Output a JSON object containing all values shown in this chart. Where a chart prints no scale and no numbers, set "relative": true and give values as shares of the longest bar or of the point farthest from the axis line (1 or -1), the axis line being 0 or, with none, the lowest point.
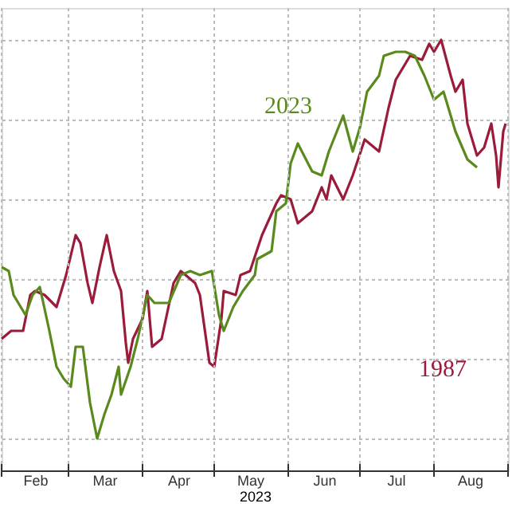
{
  "chart_data": {
    "type": "line",
    "relative": true,
    "xlabel": "2023",
    "grid": true,
    "legend": false,
    "line_style": "solid",
    "marker": "none",
    "xlim": [
      "2023-02-01",
      "2023-09-01"
    ],
    "xticks": [
      {
        "value": "2023-02-15",
        "label": "Feb"
      },
      {
        "value": "2023-03-16",
        "label": "Mar"
      },
      {
        "value": "2023-04-16",
        "label": "Apr"
      },
      {
        "value": "2023-05-16",
        "label": "May"
      },
      {
        "value": "2023-06-16",
        "label": "Jun"
      },
      {
        "value": "2023-07-16",
        "label": "Jul"
      },
      {
        "value": "2023-08-16",
        "label": "Aug"
      }
    ],
    "series": [
      {
        "name": "1987",
        "color": "#9b1b3a",
        "x": [
          "2023-02-01",
          "2023-02-05",
          "2023-02-10",
          "2023-02-13",
          "2023-02-15",
          "2023-02-19",
          "2023-02-24",
          "2023-02-28",
          "2023-03-04",
          "2023-03-06",
          "2023-03-09",
          "2023-03-11",
          "2023-03-14",
          "2023-03-17",
          "2023-03-20",
          "2023-03-23",
          "2023-03-25",
          "2023-03-26",
          "2023-03-28",
          "2023-04-01",
          "2023-04-03",
          "2023-04-05",
          "2023-04-09",
          "2023-04-14",
          "2023-04-17",
          "2023-04-23",
          "2023-04-25",
          "2023-04-29",
          "2023-05-01",
          "2023-05-04",
          "2023-05-05",
          "2023-05-10",
          "2023-05-12",
          "2023-05-16",
          "2023-05-21",
          "2023-05-27",
          "2023-05-29",
          "2023-06-02",
          "2023-06-05",
          "2023-06-11",
          "2023-06-15",
          "2023-06-17",
          "2023-06-19",
          "2023-06-24",
          "2023-06-28",
          "2023-07-03",
          "2023-07-09",
          "2023-07-13",
          "2023-07-16",
          "2023-07-22",
          "2023-07-27",
          "2023-07-30",
          "2023-08-01",
          "2023-08-04",
          "2023-08-08",
          "2023-08-10",
          "2023-08-13",
          "2023-08-15",
          "2023-08-19",
          "2023-08-22",
          "2023-08-25",
          "2023-08-27",
          "2023-08-28",
          "2023-08-30",
          "2023-08-31"
        ],
        "values": [
          0.25,
          0.27,
          0.27,
          0.36,
          0.37,
          0.36,
          0.33,
          0.41,
          0.51,
          0.49,
          0.39,
          0.34,
          0.43,
          0.51,
          0.42,
          0.37,
          0.24,
          0.19,
          0.25,
          0.3,
          0.37,
          0.23,
          0.25,
          0.39,
          0.42,
          0.39,
          0.36,
          0.19,
          0.18,
          0.3,
          0.37,
          0.36,
          0.41,
          0.42,
          0.51,
          0.59,
          0.61,
          0.6,
          0.54,
          0.57,
          0.63,
          0.6,
          0.66,
          0.6,
          0.66,
          0.75,
          0.72,
          0.83,
          0.9,
          0.96,
          0.95,
          0.99,
          0.97,
          1.0,
          0.91,
          0.87,
          0.9,
          0.79,
          0.71,
          0.73,
          0.79,
          0.71,
          0.63,
          0.77,
          0.79
        ]
      },
      {
        "name": "2023",
        "color": "#5a8a1e",
        "x": [
          "2023-02-01",
          "2023-02-04",
          "2023-02-06",
          "2023-02-09",
          "2023-02-11",
          "2023-02-14",
          "2023-02-17",
          "2023-02-21",
          "2023-02-24",
          "2023-02-27",
          "2023-03-02",
          "2023-03-04",
          "2023-03-07",
          "2023-03-10",
          "2023-03-13",
          "2023-03-16",
          "2023-03-19",
          "2023-03-22",
          "2023-03-23",
          "2023-03-27",
          "2023-03-30",
          "2023-04-03",
          "2023-04-06",
          "2023-04-12",
          "2023-04-17",
          "2023-04-21",
          "2023-04-25",
          "2023-04-30",
          "2023-05-03",
          "2023-05-05",
          "2023-05-09",
          "2023-05-13",
          "2023-05-18",
          "2023-05-19",
          "2023-05-25",
          "2023-05-27",
          "2023-05-31",
          "2023-06-02",
          "2023-06-05",
          "2023-06-11",
          "2023-06-15",
          "2023-06-18",
          "2023-06-24",
          "2023-06-28",
          "2023-07-01",
          "2023-07-04",
          "2023-07-09",
          "2023-07-11",
          "2023-07-16",
          "2023-07-20",
          "2023-07-24",
          "2023-07-28",
          "2023-08-01",
          "2023-08-05",
          "2023-08-10",
          "2023-08-15",
          "2023-08-19"
        ],
        "values": [
          0.43,
          0.42,
          0.36,
          0.33,
          0.31,
          0.36,
          0.38,
          0.27,
          0.18,
          0.15,
          0.13,
          0.23,
          0.23,
          0.09,
          0.0,
          0.06,
          0.11,
          0.18,
          0.11,
          0.18,
          0.25,
          0.36,
          0.34,
          0.34,
          0.41,
          0.42,
          0.41,
          0.42,
          0.31,
          0.27,
          0.33,
          0.37,
          0.41,
          0.45,
          0.47,
          0.57,
          0.59,
          0.69,
          0.74,
          0.67,
          0.66,
          0.72,
          0.81,
          0.72,
          0.78,
          0.87,
          0.91,
          0.96,
          0.97,
          0.97,
          0.96,
          0.91,
          0.85,
          0.87,
          0.77,
          0.7,
          0.68
        ]
      }
    ]
  }
}
